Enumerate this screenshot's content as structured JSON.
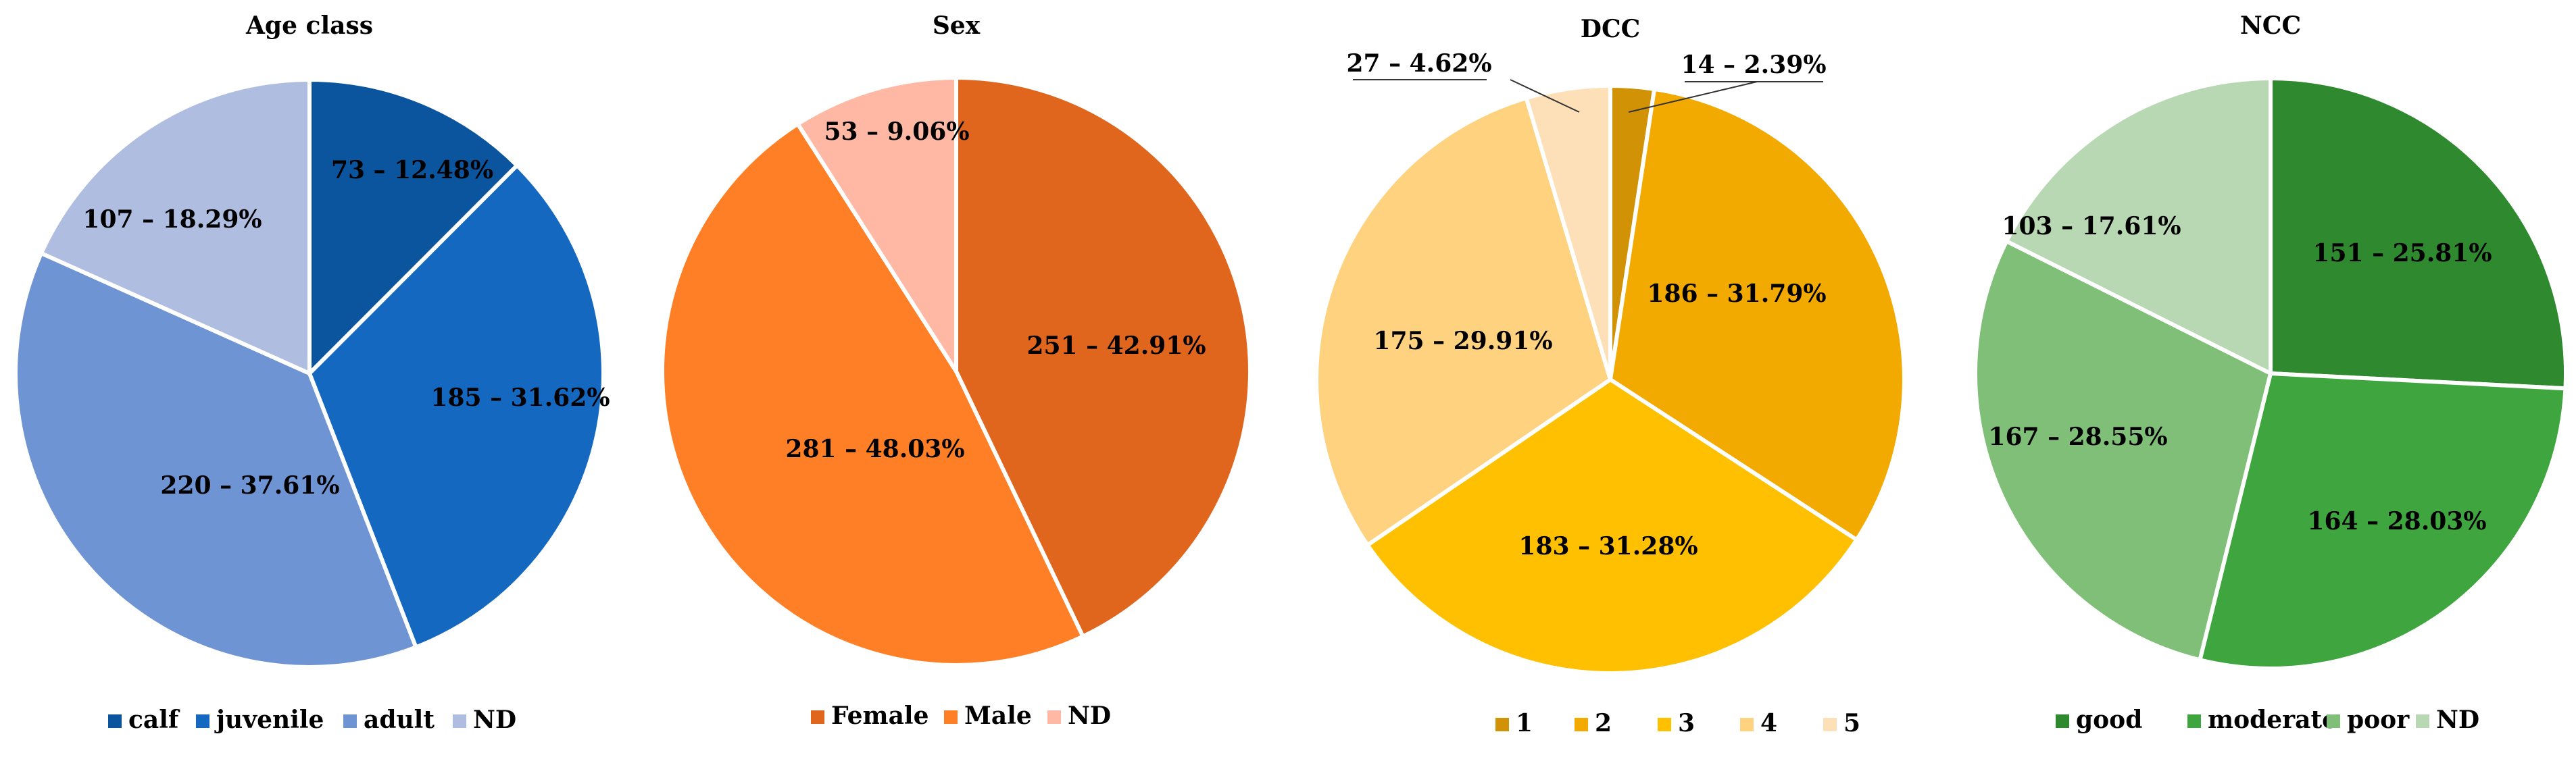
{
  "chart_data": [
    {
      "type": "pie",
      "title": "Age class",
      "categories": [
        "calf",
        "juvenile",
        "adult",
        "ND"
      ],
      "values": [
        73,
        185,
        220,
        107
      ],
      "percentages": [
        "12.48%",
        "31.62%",
        "37.61%",
        "18.29%"
      ],
      "labels": [
        "73 – 12.48%",
        "185 – 31.62%",
        "220 – 37.61%",
        "107 – 18.29%"
      ],
      "colors": [
        "#0b559f",
        "#1468c0",
        "#6e94d4",
        "#aebde0"
      ],
      "legend": "bottom"
    },
    {
      "type": "pie",
      "title": "Sex",
      "categories": [
        "Female",
        "Male",
        "ND"
      ],
      "values": [
        251,
        281,
        53
      ],
      "percentages": [
        "42.91%",
        "48.03%",
        "9.06%"
      ],
      "labels": [
        "251 – 42.91%",
        "281 – 48.03%",
        "53 – 9.06%"
      ],
      "colors": [
        "#e0661e",
        "#fe7f26",
        "#feb8a4"
      ],
      "legend": "bottom"
    },
    {
      "type": "pie",
      "title": "DCC",
      "categories": [
        "1",
        "2",
        "3",
        "4",
        "5"
      ],
      "values": [
        14,
        186,
        183,
        175,
        27
      ],
      "percentages": [
        "2.39%",
        "31.79%",
        "31.28%",
        "29.91%",
        "4.62%"
      ],
      "labels": [
        "14 – 2.39%",
        "186 – 31.79%",
        "183 – 31.28%",
        "175 – 29.91%",
        "27 – 4.62%"
      ],
      "colors": [
        "#d19206",
        "#f2a900",
        "#fec000",
        "#fed27e",
        "#fee0b8"
      ],
      "legend": "bottom"
    },
    {
      "type": "pie",
      "title": "NCC",
      "categories": [
        "good",
        "moderate",
        "poor",
        "ND"
      ],
      "values": [
        151,
        164,
        167,
        103
      ],
      "percentages": [
        "25.81%",
        "28.03%",
        "28.55%",
        "17.61%"
      ],
      "labels": [
        "151 – 25.81%",
        "164 – 28.03%",
        "167 – 28.55%",
        "103 – 17.61%"
      ],
      "colors": [
        "#2f8a2f",
        "#3fa53f",
        "#7fbf77",
        "#b7d8b2"
      ],
      "legend": "bottom"
    }
  ]
}
